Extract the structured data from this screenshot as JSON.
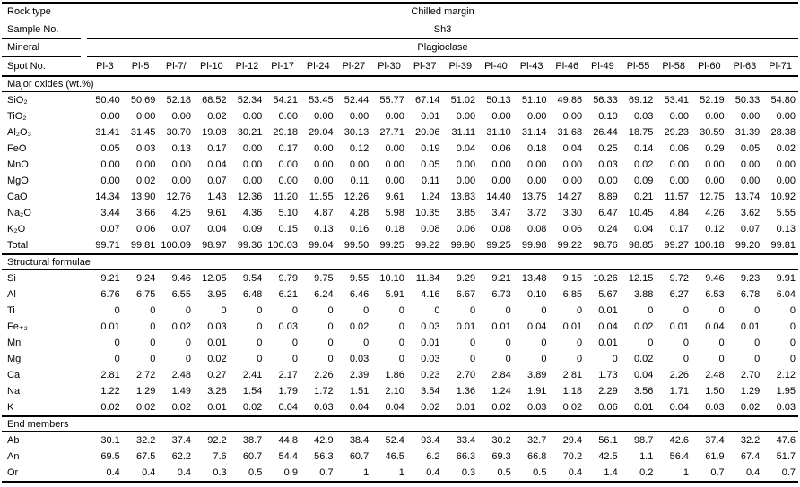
{
  "table": {
    "header_rows": [
      {
        "label": "Rock type",
        "value": "Chilled margin"
      },
      {
        "label": "Sample No.",
        "value": "Sh3"
      },
      {
        "label": "Mineral",
        "value": "Plagioclase"
      }
    ],
    "spot_row": {
      "label": "Spot No.",
      "spots": [
        "Pl-3",
        "Pl-5",
        "Pl-7/",
        "Pl-10",
        "Pl-12",
        "Pl-17",
        "Pl-24",
        "Pl-27",
        "Pl-30",
        "Pl-37",
        "Pl-39",
        "Pl-40",
        "Pl-43",
        "Pl-46",
        "Pl-49",
        "Pl-55",
        "Pl-58",
        "Pl-60",
        "Pl-63",
        "Pl-71"
      ]
    },
    "sections": [
      {
        "title": "Major oxides (wt.%)",
        "rows": [
          {
            "label": "SiO₂",
            "values": [
              "50.40",
              "50.69",
              "52.18",
              "68.52",
              "52.34",
              "54.21",
              "53.45",
              "52.44",
              "55.77",
              "67.14",
              "51.02",
              "50.13",
              "51.10",
              "49.86",
              "56.33",
              "69.12",
              "53.41",
              "52.19",
              "50.33",
              "54.80"
            ]
          },
          {
            "label": "TiO₂",
            "values": [
              "0.00",
              "0.00",
              "0.00",
              "0.02",
              "0.00",
              "0.00",
              "0.00",
              "0.00",
              "0.00",
              "0.01",
              "0.00",
              "0.00",
              "0.00",
              "0.00",
              "0.10",
              "0.03",
              "0.00",
              "0.00",
              "0.00",
              "0.00"
            ]
          },
          {
            "label": "Al₂O₃",
            "values": [
              "31.41",
              "31.45",
              "30.70",
              "19.08",
              "30.21",
              "29.18",
              "29.04",
              "30.13",
              "27.71",
              "20.06",
              "31.11",
              "31.10",
              "31.14",
              "31.68",
              "26.44",
              "18.75",
              "29.23",
              "30.59",
              "31.39",
              "28.38"
            ]
          },
          {
            "label": "FeO",
            "values": [
              "0.05",
              "0.03",
              "0.13",
              "0.17",
              "0.00",
              "0.17",
              "0.00",
              "0.12",
              "0.00",
              "0.19",
              "0.04",
              "0.06",
              "0.18",
              "0.04",
              "0.25",
              "0.14",
              "0.06",
              "0.29",
              "0.05",
              "0.02"
            ]
          },
          {
            "label": "MnO",
            "values": [
              "0.00",
              "0.00",
              "0.00",
              "0.04",
              "0.00",
              "0.00",
              "0.00",
              "0.00",
              "0.00",
              "0.05",
              "0.00",
              "0.00",
              "0.00",
              "0.00",
              "0.03",
              "0.02",
              "0.00",
              "0.00",
              "0.00",
              "0.00"
            ]
          },
          {
            "label": "MgO",
            "values": [
              "0.00",
              "0.02",
              "0.00",
              "0.07",
              "0.00",
              "0.00",
              "0.00",
              "0.11",
              "0.00",
              "0.11",
              "0.00",
              "0.00",
              "0.00",
              "0.00",
              "0.00",
              "0.09",
              "0.00",
              "0.00",
              "0.00",
              "0.00"
            ]
          },
          {
            "label": "CaO",
            "values": [
              "14.34",
              "13.90",
              "12.76",
              "1.43",
              "12.36",
              "11.20",
              "11.55",
              "12.26",
              "9.61",
              "1.24",
              "13.83",
              "14.40",
              "13.75",
              "14.27",
              "8.89",
              "0.21",
              "11.57",
              "12.75",
              "13.74",
              "10.92"
            ]
          },
          {
            "label": "Na₂O",
            "values": [
              "3.44",
              "3.66",
              "4.25",
              "9.61",
              "4.36",
              "5.10",
              "4.87",
              "4.28",
              "5.98",
              "10.35",
              "3.85",
              "3.47",
              "3.72",
              "3.30",
              "6.47",
              "10.45",
              "4.84",
              "4.26",
              "3.62",
              "5.55"
            ]
          },
          {
            "label": "K₂O",
            "values": [
              "0.07",
              "0.06",
              "0.07",
              "0.04",
              "0.09",
              "0.15",
              "0.13",
              "0.16",
              "0.18",
              "0.08",
              "0.06",
              "0.08",
              "0.08",
              "0.06",
              "0.24",
              "0.04",
              "0.17",
              "0.12",
              "0.07",
              "0.13"
            ]
          },
          {
            "label": "Total",
            "values": [
              "99.71",
              "99.81",
              "100.09",
              "98.97",
              "99.36",
              "100.03",
              "99.04",
              "99.50",
              "99.25",
              "99.22",
              "99.90",
              "99.25",
              "99.98",
              "99.22",
              "98.76",
              "98.85",
              "99.27",
              "100.18",
              "99.20",
              "99.81"
            ]
          }
        ]
      },
      {
        "title": "Structural formulae",
        "rows": [
          {
            "label": "Si",
            "values": [
              "9.21",
              "9.24",
              "9.46",
              "12.05",
              "9.54",
              "9.79",
              "9.75",
              "9.55",
              "10.10",
              "11.84",
              "9.29",
              "9.21",
              "13.48",
              "9.15",
              "10.26",
              "12.15",
              "9.72",
              "9.46",
              "9.23",
              "9.91"
            ]
          },
          {
            "label": "Al",
            "values": [
              "6.76",
              "6.75",
              "6.55",
              "3.95",
              "6.48",
              "6.21",
              "6.24",
              "6.46",
              "5.91",
              "4.16",
              "6.67",
              "6.73",
              "0.10",
              "6.85",
              "5.67",
              "3.88",
              "6.27",
              "6.53",
              "6.78",
              "6.04"
            ]
          },
          {
            "label": "Ti",
            "values": [
              "0",
              "0",
              "0",
              "0",
              "0",
              "0",
              "0",
              "0",
              "0",
              "0",
              "0",
              "0",
              "0",
              "0",
              "0.01",
              "0",
              "0",
              "0",
              "0",
              "0"
            ]
          },
          {
            "label": "Fe₊₂",
            "values": [
              "0.01",
              "0",
              "0.02",
              "0.03",
              "0",
              "0.03",
              "0",
              "0.02",
              "0",
              "0.03",
              "0.01",
              "0.01",
              "0.04",
              "0.01",
              "0.04",
              "0.02",
              "0.01",
              "0.04",
              "0.01",
              "0"
            ]
          },
          {
            "label": "Mn",
            "values": [
              "0",
              "0",
              "0",
              "0.01",
              "0",
              "0",
              "0",
              "0",
              "0",
              "0.01",
              "0",
              "0",
              "0",
              "0",
              "0.01",
              "0",
              "0",
              "0",
              "0",
              "0"
            ]
          },
          {
            "label": "Mg",
            "values": [
              "0",
              "0",
              "0",
              "0.02",
              "0",
              "0",
              "0",
              "0.03",
              "0",
              "0.03",
              "0",
              "0",
              "0",
              "0",
              "0",
              "0.02",
              "0",
              "0",
              "0",
              "0"
            ]
          },
          {
            "label": "Ca",
            "values": [
              "2.81",
              "2.72",
              "2.48",
              "0.27",
              "2.41",
              "2.17",
              "2.26",
              "2.39",
              "1.86",
              "0.23",
              "2.70",
              "2.84",
              "3.89",
              "2.81",
              "1.73",
              "0.04",
              "2.26",
              "2.48",
              "2.70",
              "2.12"
            ]
          },
          {
            "label": "Na",
            "values": [
              "1.22",
              "1.29",
              "1.49",
              "3.28",
              "1.54",
              "1.79",
              "1.72",
              "1.51",
              "2.10",
              "3.54",
              "1.36",
              "1.24",
              "1.91",
              "1.18",
              "2.29",
              "3.56",
              "1.71",
              "1.50",
              "1.29",
              "1.95"
            ]
          },
          {
            "label": "K",
            "values": [
              "0.02",
              "0.02",
              "0.02",
              "0.01",
              "0.02",
              "0.04",
              "0.03",
              "0.04",
              "0.04",
              "0.02",
              "0.01",
              "0.02",
              "0.03",
              "0.02",
              "0.06",
              "0.01",
              "0.04",
              "0.03",
              "0.02",
              "0.03"
            ]
          }
        ]
      },
      {
        "title": "End members",
        "rows": [
          {
            "label": "Ab",
            "values": [
              "30.1",
              "32.2",
              "37.4",
              "92.2",
              "38.7",
              "44.8",
              "42.9",
              "38.4",
              "52.4",
              "93.4",
              "33.4",
              "30.2",
              "32.7",
              "29.4",
              "56.1",
              "98.7",
              "42.6",
              "37.4",
              "32.2",
              "47.6"
            ]
          },
          {
            "label": "An",
            "values": [
              "69.5",
              "67.5",
              "62.2",
              "7.6",
              "60.7",
              "54.4",
              "56.3",
              "60.7",
              "46.5",
              "6.2",
              "66.3",
              "69.3",
              "66.8",
              "70.2",
              "42.5",
              "1.1",
              "56.4",
              "61.9",
              "67.4",
              "51.7"
            ]
          },
          {
            "label": "Or",
            "values": [
              "0.4",
              "0.4",
              "0.4",
              "0.3",
              "0.5",
              "0.9",
              "0.7",
              "1",
              "1",
              "0.4",
              "0.3",
              "0.5",
              "0.5",
              "0.4",
              "1.4",
              "0.2",
              "1",
              "0.7",
              "0.4",
              "0.7"
            ]
          }
        ]
      }
    ]
  }
}
